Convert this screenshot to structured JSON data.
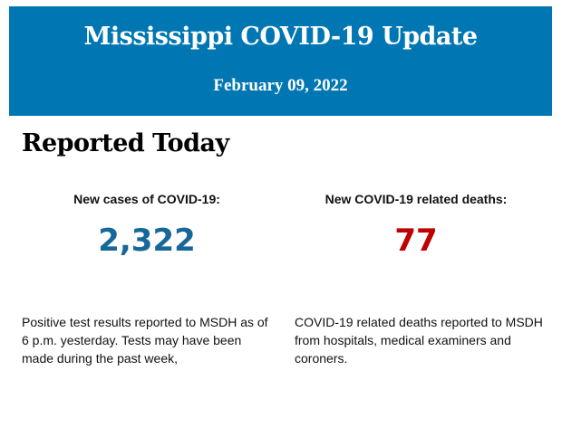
{
  "header": {
    "title": "Mississippi COVID-19 Update",
    "date": "February 09, 2022",
    "background_color": "#0077b3"
  },
  "section": {
    "title": "Reported Today"
  },
  "stats": [
    {
      "label": "New cases of COVID-19:",
      "value": "2,322",
      "color": "#17679a",
      "description": "Positive test results reported to MSDH as of 6 p.m. yesterday. Tests may have been made during the past week,"
    },
    {
      "label": "New COVID-19 related deaths:",
      "value": "77",
      "color": "#c00000",
      "description": "COVID-19 related deaths reported to MSDH from hospitals, medical examiners and coroners."
    }
  ]
}
